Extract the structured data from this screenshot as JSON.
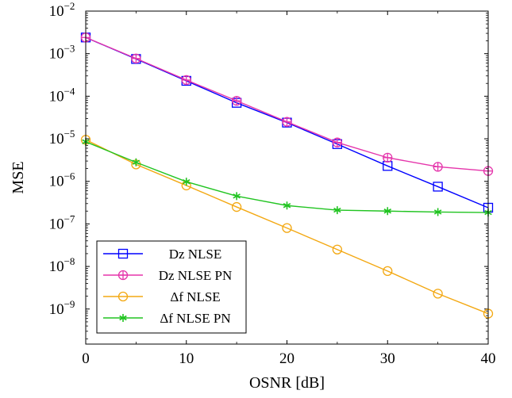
{
  "chart_data": {
    "type": "line",
    "title": "",
    "xlabel": "OSNR [dB]",
    "ylabel": "MSE",
    "xlim": [
      0,
      40
    ],
    "ylim": [
      1.5e-10,
      0.01
    ],
    "yscale": "log",
    "grid": false,
    "legend_position": "bottom-left",
    "x_ticks": [
      0,
      10,
      20,
      30,
      40
    ],
    "x_tick_labels": [
      "0",
      "10",
      "20",
      "30",
      "40"
    ],
    "y_tick_exponents": [
      -2,
      -3,
      -4,
      -5,
      -6,
      -7,
      -8,
      -9
    ],
    "y_tick_base": "10",
    "x": [
      0,
      5,
      10,
      15,
      20,
      25,
      30,
      35,
      40
    ],
    "series": [
      {
        "name": "Dz NLSE",
        "color": "#0000ff",
        "marker": "square",
        "values": [
          0.0024,
          0.00075,
          0.00023,
          7e-05,
          2.4e-05,
          7.5e-06,
          2.3e-06,
          7.5e-07,
          2.4e-07
        ]
      },
      {
        "name": "Dz NLSE PN",
        "color": "#e535ab",
        "marker": "oplus",
        "values": [
          0.0024,
          0.00077,
          0.00024,
          7.8e-05,
          2.5e-05,
          8.2e-06,
          3.6e-06,
          2.2e-06,
          1.75e-06
        ]
      },
      {
        "name": "Δf NLSE",
        "color": "#f3a812",
        "marker": "circle",
        "values": [
          9.5e-06,
          2.5e-06,
          8e-07,
          2.5e-07,
          8e-08,
          2.5e-08,
          7.8e-09,
          2.3e-09,
          7.8e-10
        ]
      },
      {
        "name": "Δf NLSE PN",
        "color": "#21c421",
        "marker": "asterisk",
        "values": [
          8.5e-06,
          2.8e-06,
          9.8e-07,
          4.5e-07,
          2.7e-07,
          2.1e-07,
          2e-07,
          1.9e-07,
          1.85e-07
        ]
      }
    ]
  }
}
